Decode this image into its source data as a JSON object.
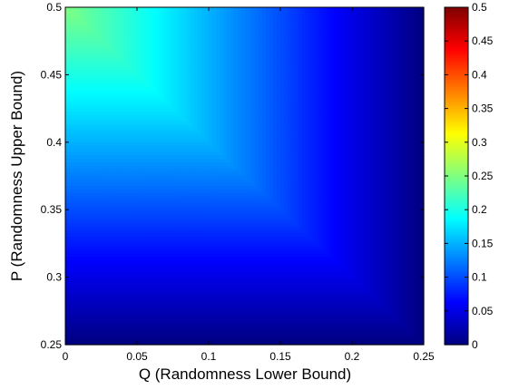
{
  "chart_data": {
    "type": "heatmap",
    "title": "",
    "xlabel": "Q (Randomness Lower Bound)",
    "ylabel": "P (Randomness Upper Bound)",
    "xlim": [
      0,
      0.25
    ],
    "ylim": [
      0.25,
      0.5
    ],
    "x_ticks": [
      "0",
      "0.05",
      "0.1",
      "0.15",
      "0.2",
      "0.25"
    ],
    "y_ticks": [
      "0.25",
      "0.3",
      "0.35",
      "0.4",
      "0.45",
      "0.5"
    ],
    "colorbar": {
      "range": [
        0,
        0.5
      ],
      "ticks": [
        "0",
        "0.05",
        "0.1",
        "0.15",
        "0.2",
        "0.25",
        "0.3",
        "0.35",
        "0.4",
        "0.45",
        "0.5"
      ],
      "colormap": "jet",
      "placement": "right"
    },
    "value_model": "z = min(P - 0.25, 0.25 - Q)",
    "z_range": [
      0,
      0.5
    ],
    "grid": false
  }
}
